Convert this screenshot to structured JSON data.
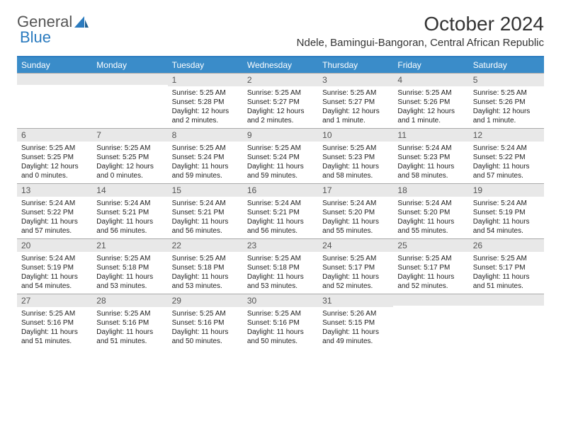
{
  "brand": {
    "part1": "General",
    "part2": "Blue"
  },
  "title": "October 2024",
  "location": "Ndele, Bamingui-Bangoran, Central African Republic",
  "colors": {
    "header_bg": "#3a8cc9",
    "header_border": "#2b7bbf",
    "daynum_bg": "#e8e8e8",
    "text": "#222222",
    "brand_gray": "#555555",
    "brand_blue": "#2b7bbf"
  },
  "day_names": [
    "Sunday",
    "Monday",
    "Tuesday",
    "Wednesday",
    "Thursday",
    "Friday",
    "Saturday"
  ],
  "weeks": [
    [
      null,
      null,
      {
        "n": "1",
        "sr": "5:25 AM",
        "ss": "5:28 PM",
        "dl": "12 hours and 2 minutes."
      },
      {
        "n": "2",
        "sr": "5:25 AM",
        "ss": "5:27 PM",
        "dl": "12 hours and 2 minutes."
      },
      {
        "n": "3",
        "sr": "5:25 AM",
        "ss": "5:27 PM",
        "dl": "12 hours and 1 minute."
      },
      {
        "n": "4",
        "sr": "5:25 AM",
        "ss": "5:26 PM",
        "dl": "12 hours and 1 minute."
      },
      {
        "n": "5",
        "sr": "5:25 AM",
        "ss": "5:26 PM",
        "dl": "12 hours and 1 minute."
      }
    ],
    [
      {
        "n": "6",
        "sr": "5:25 AM",
        "ss": "5:25 PM",
        "dl": "12 hours and 0 minutes."
      },
      {
        "n": "7",
        "sr": "5:25 AM",
        "ss": "5:25 PM",
        "dl": "12 hours and 0 minutes."
      },
      {
        "n": "8",
        "sr": "5:25 AM",
        "ss": "5:24 PM",
        "dl": "11 hours and 59 minutes."
      },
      {
        "n": "9",
        "sr": "5:25 AM",
        "ss": "5:24 PM",
        "dl": "11 hours and 59 minutes."
      },
      {
        "n": "10",
        "sr": "5:25 AM",
        "ss": "5:23 PM",
        "dl": "11 hours and 58 minutes."
      },
      {
        "n": "11",
        "sr": "5:24 AM",
        "ss": "5:23 PM",
        "dl": "11 hours and 58 minutes."
      },
      {
        "n": "12",
        "sr": "5:24 AM",
        "ss": "5:22 PM",
        "dl": "11 hours and 57 minutes."
      }
    ],
    [
      {
        "n": "13",
        "sr": "5:24 AM",
        "ss": "5:22 PM",
        "dl": "11 hours and 57 minutes."
      },
      {
        "n": "14",
        "sr": "5:24 AM",
        "ss": "5:21 PM",
        "dl": "11 hours and 56 minutes."
      },
      {
        "n": "15",
        "sr": "5:24 AM",
        "ss": "5:21 PM",
        "dl": "11 hours and 56 minutes."
      },
      {
        "n": "16",
        "sr": "5:24 AM",
        "ss": "5:21 PM",
        "dl": "11 hours and 56 minutes."
      },
      {
        "n": "17",
        "sr": "5:24 AM",
        "ss": "5:20 PM",
        "dl": "11 hours and 55 minutes."
      },
      {
        "n": "18",
        "sr": "5:24 AM",
        "ss": "5:20 PM",
        "dl": "11 hours and 55 minutes."
      },
      {
        "n": "19",
        "sr": "5:24 AM",
        "ss": "5:19 PM",
        "dl": "11 hours and 54 minutes."
      }
    ],
    [
      {
        "n": "20",
        "sr": "5:24 AM",
        "ss": "5:19 PM",
        "dl": "11 hours and 54 minutes."
      },
      {
        "n": "21",
        "sr": "5:25 AM",
        "ss": "5:18 PM",
        "dl": "11 hours and 53 minutes."
      },
      {
        "n": "22",
        "sr": "5:25 AM",
        "ss": "5:18 PM",
        "dl": "11 hours and 53 minutes."
      },
      {
        "n": "23",
        "sr": "5:25 AM",
        "ss": "5:18 PM",
        "dl": "11 hours and 53 minutes."
      },
      {
        "n": "24",
        "sr": "5:25 AM",
        "ss": "5:17 PM",
        "dl": "11 hours and 52 minutes."
      },
      {
        "n": "25",
        "sr": "5:25 AM",
        "ss": "5:17 PM",
        "dl": "11 hours and 52 minutes."
      },
      {
        "n": "26",
        "sr": "5:25 AM",
        "ss": "5:17 PM",
        "dl": "11 hours and 51 minutes."
      }
    ],
    [
      {
        "n": "27",
        "sr": "5:25 AM",
        "ss": "5:16 PM",
        "dl": "11 hours and 51 minutes."
      },
      {
        "n": "28",
        "sr": "5:25 AM",
        "ss": "5:16 PM",
        "dl": "11 hours and 51 minutes."
      },
      {
        "n": "29",
        "sr": "5:25 AM",
        "ss": "5:16 PM",
        "dl": "11 hours and 50 minutes."
      },
      {
        "n": "30",
        "sr": "5:25 AM",
        "ss": "5:16 PM",
        "dl": "11 hours and 50 minutes."
      },
      {
        "n": "31",
        "sr": "5:26 AM",
        "ss": "5:15 PM",
        "dl": "11 hours and 49 minutes."
      },
      null,
      null
    ]
  ],
  "labels": {
    "sunrise": "Sunrise:",
    "sunset": "Sunset:",
    "daylight": "Daylight:"
  }
}
